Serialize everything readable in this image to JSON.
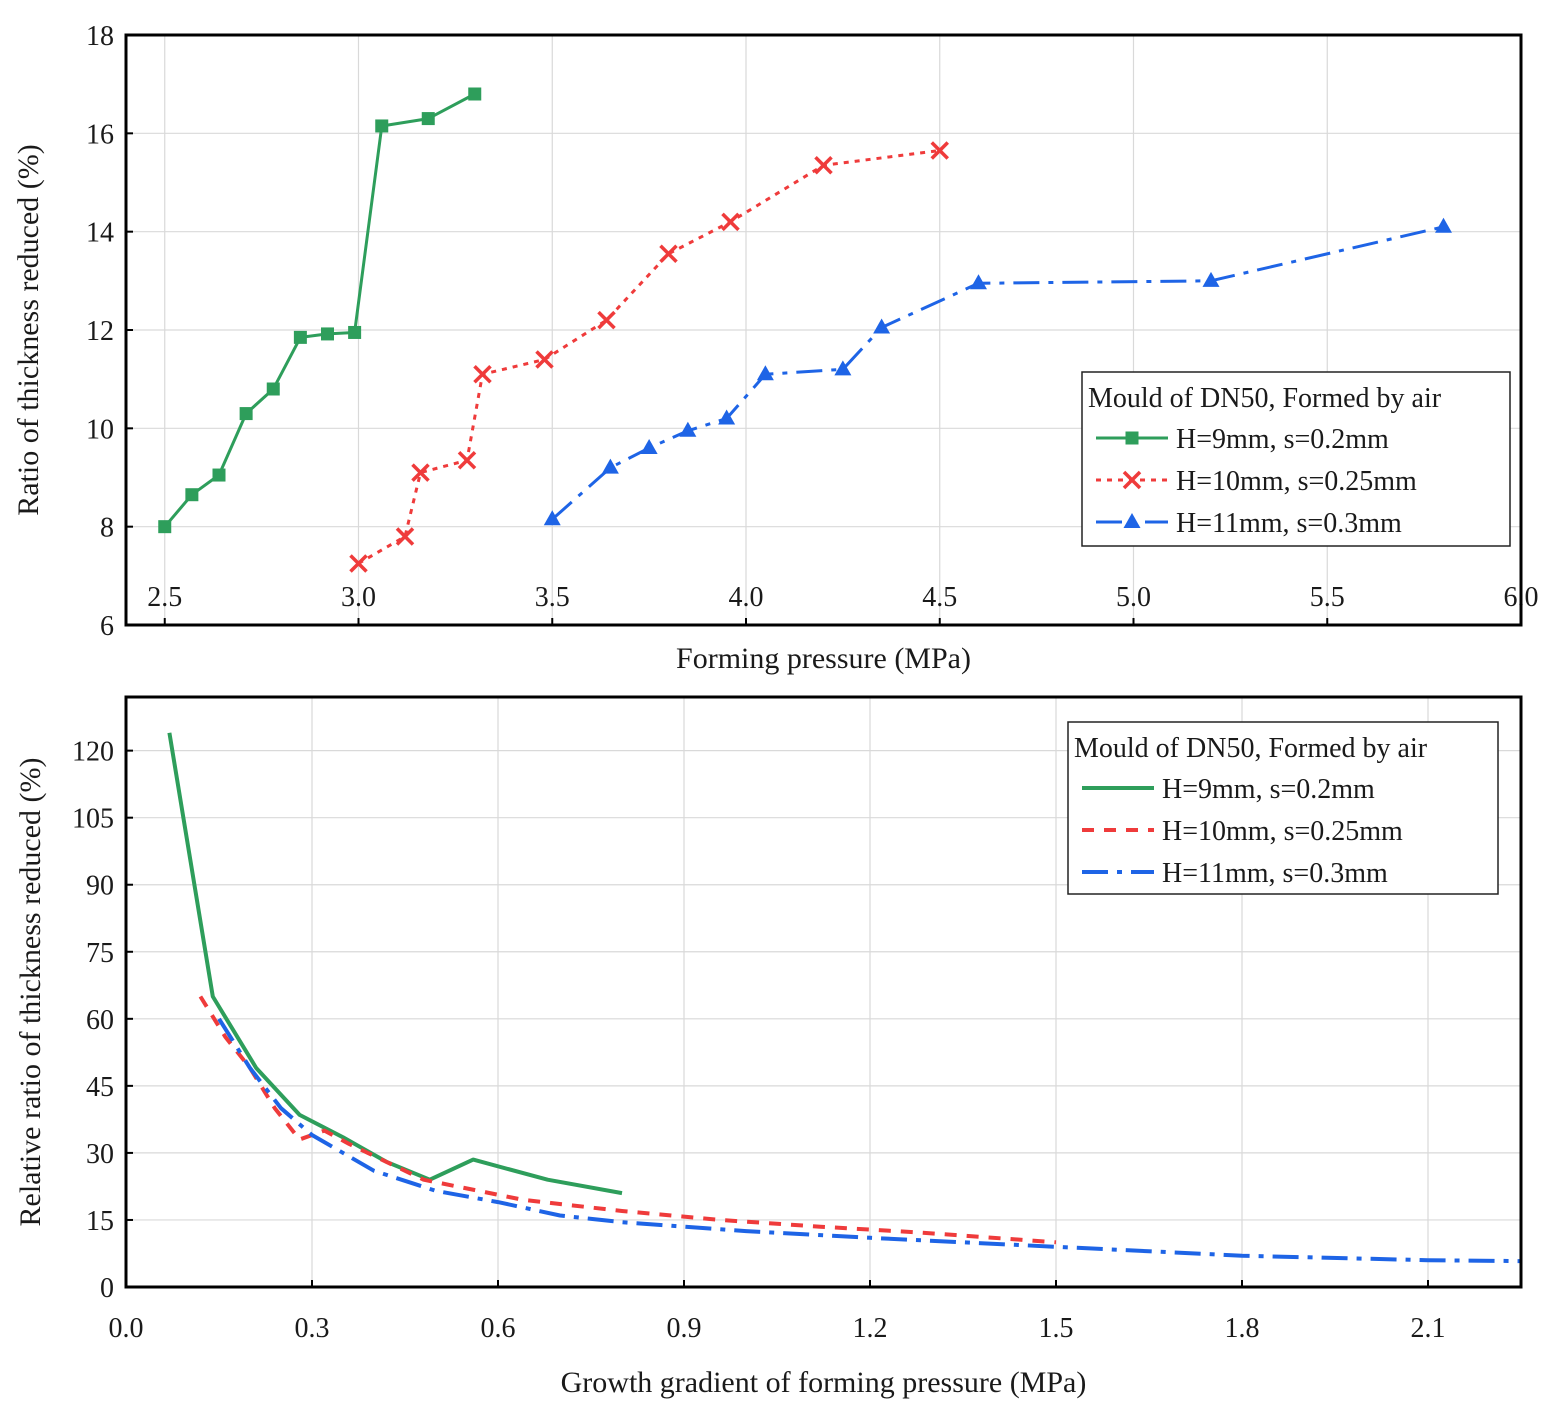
{
  "chart_data": [
    {
      "type": "line",
      "xlabel": "Forming pressure (MPa)",
      "ylabel": "Ratio of thickness reduced (%)",
      "xlim": [
        2.4,
        6.0
      ],
      "ylim": [
        6,
        18
      ],
      "xticks": [
        2.5,
        3.0,
        3.5,
        4.0,
        4.5,
        5.0,
        5.5,
        6.0
      ],
      "xtick_labels": [
        "2.5",
        "3.0",
        "3.5",
        "4.0",
        "4.5",
        "5.0",
        "5.5",
        "6.0"
      ],
      "yticks": [
        6,
        8,
        10,
        12,
        14,
        16,
        18
      ],
      "ytick_labels": [
        "6",
        "8",
        "10",
        "12",
        "14",
        "16",
        "18"
      ],
      "grid": true,
      "legend": {
        "title": "Mould of DN50, Formed by air",
        "position": "right-center"
      },
      "series": [
        {
          "name": "H=9mm, s=0.2mm",
          "color": "#2e9e5b",
          "line_style": "solid",
          "marker": "square",
          "x": [
            2.5,
            2.57,
            2.64,
            2.71,
            2.78,
            2.85,
            2.92,
            2.99,
            3.06,
            3.18,
            3.3
          ],
          "y": [
            8.0,
            8.65,
            9.05,
            10.3,
            10.8,
            11.85,
            11.92,
            11.95,
            16.15,
            16.3,
            16.8
          ]
        },
        {
          "name": "H=10mm, s=0.25mm",
          "color": "#ef3b3b",
          "line_style": "dotted",
          "marker": "x",
          "x": [
            3.0,
            3.12,
            3.16,
            3.28,
            3.32,
            3.48,
            3.64,
            3.8,
            3.96,
            4.2,
            4.5
          ],
          "y": [
            7.25,
            7.8,
            9.1,
            9.35,
            11.1,
            11.4,
            12.2,
            13.55,
            14.2,
            15.35,
            15.65
          ]
        },
        {
          "name": "H=11mm, s=0.3mm",
          "color": "#1e64e6",
          "line_style": "dashdot",
          "marker": "triangle",
          "x": [
            3.5,
            3.65,
            3.75,
            3.85,
            3.95,
            4.05,
            4.25,
            4.35,
            4.6,
            5.2,
            5.8
          ],
          "y": [
            8.15,
            9.2,
            9.6,
            9.95,
            10.2,
            11.1,
            11.2,
            12.05,
            12.95,
            13.0,
            14.1
          ]
        }
      ]
    },
    {
      "type": "line",
      "xlabel": "Growth gradient of forming pressure (MPa)",
      "ylabel": "Relative ratio of thickness reduced (%)",
      "xlim": [
        0.0,
        2.25
      ],
      "ylim": [
        0,
        132
      ],
      "xticks": [
        0.0,
        0.3,
        0.6,
        0.9,
        1.2,
        1.5,
        1.8,
        2.1
      ],
      "xtick_labels": [
        "0.0",
        "0.3",
        "0.6",
        "0.9",
        "1.2",
        "1.5",
        "1.8",
        "2.1"
      ],
      "yticks": [
        0,
        15,
        30,
        45,
        60,
        75,
        90,
        105,
        120
      ],
      "ytick_labels": [
        "0",
        "15",
        "30",
        "45",
        "60",
        "75",
        "90",
        "105",
        "120"
      ],
      "grid": true,
      "legend": {
        "title": "Mould of DN50, Formed by air",
        "position": "top-right"
      },
      "series": [
        {
          "name": "H=9mm, s=0.2mm",
          "color": "#2e9e5b",
          "line_style": "solid",
          "marker": "none",
          "x": [
            0.07,
            0.14,
            0.21,
            0.28,
            0.35,
            0.42,
            0.49,
            0.56,
            0.68,
            0.8
          ],
          "y": [
            124,
            65,
            49,
            38.5,
            33.5,
            28,
            24,
            28.5,
            24,
            21
          ]
        },
        {
          "name": "H=10mm, s=0.25mm",
          "color": "#ef3b3b",
          "line_style": "dashed",
          "marker": "none",
          "x": [
            0.12,
            0.16,
            0.2,
            0.24,
            0.28,
            0.32,
            0.36,
            0.48,
            0.64,
            0.8,
            0.96,
            1.12,
            1.28,
            1.5
          ],
          "y": [
            65,
            56,
            49,
            40,
            33,
            35,
            32,
            24,
            19.5,
            17,
            15,
            13.5,
            12.2,
            10
          ]
        },
        {
          "name": "H=11mm, s=0.3mm",
          "color": "#1e64e6",
          "line_style": "dashdot",
          "marker": "none",
          "x": [
            0.15,
            0.2,
            0.25,
            0.3,
            0.4,
            0.5,
            0.6,
            0.7,
            0.8,
            1.0,
            1.2,
            1.5,
            1.8,
            2.1,
            2.25
          ],
          "y": [
            60,
            49,
            40,
            34,
            26,
            21.5,
            19,
            16,
            14.5,
            12.5,
            11,
            9,
            7,
            6,
            5.8
          ]
        }
      ]
    }
  ]
}
